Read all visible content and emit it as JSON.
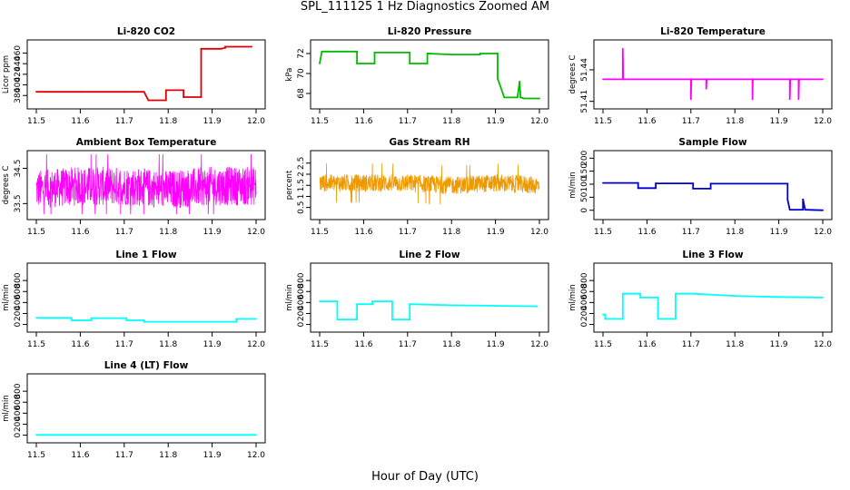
{
  "figure": {
    "title": "SPL_111125  1 Hz Diagnostics Zoomed AM",
    "xlabel": "Hour of Day (UTC)"
  },
  "chart_data": [
    {
      "type": "line",
      "title": "Li-820 CO2",
      "ylabel": "Licor ppm",
      "color": "#dd0000",
      "xlim": [
        11.5,
        12.0
      ],
      "ylim": [
        365,
        478
      ],
      "xticks": [
        "11.5",
        "11.6",
        "11.7",
        "11.8",
        "11.9",
        "12.0"
      ],
      "yticks": [
        380,
        400,
        420,
        440,
        460
      ],
      "series": [
        {
          "x": [
            11.5,
            11.6,
            11.7,
            11.745,
            11.755,
            11.755,
            11.795,
            11.795,
            11.835,
            11.835,
            11.875,
            11.875,
            11.92,
            11.93,
            11.93,
            11.95,
            11.99
          ],
          "y": [
            387,
            387,
            387,
            387,
            371,
            371,
            371,
            390,
            390,
            377,
            377,
            468,
            468,
            470,
            472,
            472,
            472
          ]
        }
      ]
    },
    {
      "type": "line",
      "title": "Li-820 Pressure",
      "ylabel": "kPa",
      "color": "#00bb00",
      "xlim": [
        11.5,
        12.0
      ],
      "ylim": [
        67,
        73
      ],
      "xticks": [
        "11.5",
        "11.6",
        "11.7",
        "11.8",
        "11.9",
        "12.0"
      ],
      "yticks": [
        68,
        70,
        72
      ],
      "series": [
        {
          "x": [
            11.5,
            11.505,
            11.585,
            11.585,
            11.625,
            11.625,
            11.705,
            11.705,
            11.745,
            11.745,
            11.8,
            11.865,
            11.865,
            11.905,
            11.905,
            11.92,
            11.925,
            11.95,
            11.955,
            11.957,
            11.965,
            12.0
          ],
          "y": [
            71.0,
            72.2,
            72.2,
            71.0,
            71.0,
            72.1,
            72.1,
            71.0,
            71.0,
            72.0,
            71.9,
            71.9,
            72.0,
            72.0,
            69.5,
            67.6,
            67.6,
            67.6,
            69.2,
            67.6,
            67.5,
            67.5
          ]
        }
      ]
    },
    {
      "type": "line",
      "title": "Li-820 Temperature",
      "ylabel": "degrees C",
      "color": "#ff00ff",
      "xlim": [
        11.5,
        12.0
      ],
      "ylim": [
        51.408,
        51.465
      ],
      "xticks": [
        "11.5",
        "11.6",
        "11.7",
        "11.8",
        "11.9",
        "12.0"
      ],
      "yticks": [
        51.41,
        51.44
      ],
      "series": [
        {
          "x": [
            11.5,
            11.545,
            11.545,
            11.546,
            11.7,
            11.7,
            11.701,
            11.735,
            11.735,
            11.736,
            11.84,
            11.84,
            11.841,
            11.925,
            11.925,
            11.926,
            11.945,
            11.945,
            11.946,
            12.0
          ],
          "y": [
            51.431,
            51.431,
            51.46,
            51.431,
            51.431,
            51.412,
            51.431,
            51.431,
            51.422,
            51.431,
            51.431,
            51.412,
            51.431,
            51.431,
            51.412,
            51.431,
            51.431,
            51.412,
            51.431,
            51.431
          ]
        }
      ]
    },
    {
      "type": "line",
      "title": "Ambient Box Temperature",
      "ylabel": "degrees C",
      "color": "#ff00ff",
      "xlim": [
        11.5,
        12.0
      ],
      "ylim": [
        33.2,
        34.9
      ],
      "xticks": [
        "11.5",
        "11.6",
        "11.7",
        "11.8",
        "11.9",
        "12.0"
      ],
      "yticks": [
        33.5,
        34.5
      ],
      "series": [
        {
          "x": [
            11.5,
            11.6,
            11.7,
            11.8,
            11.9,
            12.0
          ],
          "y": [
            33.9,
            34.0,
            34.0,
            33.9,
            34.0,
            34.0
          ],
          "band": [
            0.55,
            0.55,
            0.55,
            0.55,
            0.55,
            0.55
          ]
        }
      ]
    },
    {
      "type": "line",
      "title": "Gas Stream RH",
      "ylabel": "percent",
      "color": "#ee9900",
      "xlim": [
        11.5,
        12.0
      ],
      "ylim": [
        0.2,
        2.9
      ],
      "xticks": [
        "11.5",
        "11.6",
        "11.7",
        "11.8",
        "11.9",
        "12.0"
      ],
      "yticks": [
        0.5,
        1.0,
        1.5,
        2.0,
        2.5
      ],
      "series": [
        {
          "x": [
            11.5,
            11.6,
            11.7,
            11.8,
            11.9,
            12.0
          ],
          "y": [
            1.6,
            1.6,
            1.6,
            1.5,
            1.6,
            1.5
          ],
          "band": [
            0.4,
            0.4,
            0.4,
            0.4,
            0.4,
            0.4
          ]
        }
      ]
    },
    {
      "type": "line",
      "title": "Sample Flow",
      "ylabel": "ml/min",
      "color": "#0000cc",
      "xlim": [
        11.5,
        12.0
      ],
      "ylim": [
        -15,
        215
      ],
      "xticks": [
        "11.5",
        "11.6",
        "11.7",
        "11.8",
        "11.9",
        "12.0"
      ],
      "yticks": [
        0,
        50,
        100,
        150,
        200
      ],
      "series": [
        {
          "x": [
            11.5,
            11.58,
            11.58,
            11.62,
            11.62,
            11.705,
            11.705,
            11.745,
            11.745,
            11.92,
            11.92,
            11.925,
            11.955,
            11.955,
            11.96,
            12.0
          ],
          "y": [
            105,
            105,
            85,
            85,
            103,
            103,
            83,
            83,
            102,
            102,
            40,
            2,
            2,
            42,
            2,
            0
          ]
        }
      ]
    },
    {
      "type": "line",
      "title": "Line 1 Flow",
      "ylabel": "ml/min",
      "color": "#00ffff",
      "xlim": [
        11.5,
        12.0
      ],
      "ylim": [
        -40,
        1050
      ],
      "xticks": [
        "11.5",
        "11.6",
        "11.7",
        "11.8",
        "11.9",
        "12.0"
      ],
      "yticks": [
        0,
        200,
        400,
        600,
        800
      ],
      "series": [
        {
          "x": [
            11.5,
            11.58,
            11.58,
            11.625,
            11.625,
            11.705,
            11.705,
            11.745,
            11.745,
            11.955,
            11.955,
            12.0
          ],
          "y": [
            120,
            120,
            75,
            75,
            115,
            115,
            75,
            75,
            50,
            50,
            100,
            100
          ]
        }
      ]
    },
    {
      "type": "line",
      "title": "Line 2 Flow",
      "ylabel": "ml/min",
      "color": "#00ffff",
      "xlim": [
        11.5,
        12.0
      ],
      "ylim": [
        -40,
        1050
      ],
      "xticks": [
        "11.5",
        "11.6",
        "11.7",
        "11.8",
        "11.9",
        "12.0"
      ],
      "yticks": [
        0,
        200,
        400,
        600,
        800
      ],
      "series": [
        {
          "x": [
            11.5,
            11.54,
            11.54,
            11.585,
            11.585,
            11.62,
            11.62,
            11.665,
            11.665,
            11.705,
            11.705,
            11.8,
            11.9,
            11.995
          ],
          "y": [
            420,
            420,
            90,
            90,
            370,
            370,
            420,
            420,
            90,
            90,
            370,
            350,
            340,
            330
          ]
        }
      ]
    },
    {
      "type": "line",
      "title": "Line 3 Flow",
      "ylabel": "ml/min",
      "color": "#00ffff",
      "xlim": [
        11.5,
        12.0
      ],
      "ylim": [
        -40,
        1050
      ],
      "xticks": [
        "11.5",
        "11.6",
        "11.7",
        "11.8",
        "11.9",
        "12.0"
      ],
      "yticks": [
        0,
        200,
        400,
        600,
        800
      ],
      "series": [
        {
          "x": [
            11.5,
            11.505,
            11.505,
            11.545,
            11.545,
            11.585,
            11.585,
            11.625,
            11.625,
            11.665,
            11.665,
            11.705,
            11.8,
            11.9,
            12.0
          ],
          "y": [
            180,
            180,
            100,
            100,
            560,
            560,
            490,
            490,
            100,
            100,
            560,
            560,
            520,
            500,
            490
          ]
        }
      ]
    },
    {
      "type": "line",
      "title": "Line 4 (LT) Flow",
      "ylabel": "ml/min",
      "color": "#00ffff",
      "xlim": [
        11.5,
        12.0
      ],
      "ylim": [
        -40,
        1050
      ],
      "xticks": [
        "11.5",
        "11.6",
        "11.7",
        "11.8",
        "11.9",
        "12.0"
      ],
      "yticks": [
        0,
        200,
        400,
        600,
        800
      ],
      "series": [
        {
          "x": [
            11.5,
            11.6,
            11.7,
            11.8,
            11.9,
            12.0
          ],
          "y": [
            5,
            5,
            5,
            5,
            5,
            5
          ]
        }
      ]
    }
  ]
}
